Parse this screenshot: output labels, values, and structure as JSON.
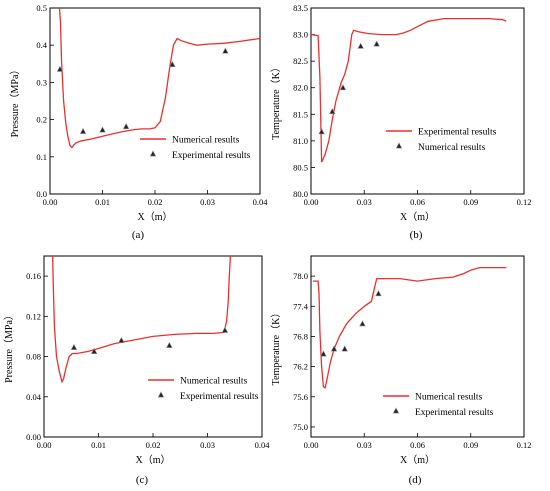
{
  "chart_data": [
    {
      "type": "line",
      "panel_label": "(a)",
      "xlabel": "X（m）",
      "ylabel": "Pressure（MPa）",
      "xlim": [
        0,
        0.04
      ],
      "ylim": [
        0,
        0.5
      ],
      "xticks": [
        "0.00",
        "0.01",
        "0.02",
        "0.03",
        "0.04"
      ],
      "yticks": [
        "0.0",
        "0.1",
        "0.2",
        "0.3",
        "0.4",
        "0.5"
      ],
      "legend_position": "center-right",
      "legend": {
        "line": "Numerical results",
        "marker": "Experimental results"
      },
      "series": [
        {
          "name": "Numerical results",
          "kind": "line",
          "x": [
            0.0018,
            0.002,
            0.0022,
            0.0026,
            0.003,
            0.0034,
            0.0038,
            0.0042,
            0.0046,
            0.005,
            0.006,
            0.008,
            0.01,
            0.012,
            0.014,
            0.016,
            0.0175,
            0.019,
            0.02,
            0.021,
            0.022,
            0.0228,
            0.0235,
            0.0242,
            0.025,
            0.0265,
            0.028,
            0.03,
            0.033,
            0.036,
            0.04
          ],
          "y": [
            0.5,
            0.46,
            0.36,
            0.25,
            0.19,
            0.155,
            0.13,
            0.125,
            0.133,
            0.138,
            0.143,
            0.148,
            0.155,
            0.162,
            0.168,
            0.173,
            0.175,
            0.175,
            0.178,
            0.195,
            0.26,
            0.34,
            0.4,
            0.418,
            0.412,
            0.405,
            0.4,
            0.403,
            0.405,
            0.41,
            0.418
          ]
        },
        {
          "name": "Experimental results",
          "kind": "scatter",
          "x": [
            0.0019,
            0.0063,
            0.01,
            0.0145,
            0.0233,
            0.0334
          ],
          "y": [
            0.335,
            0.168,
            0.172,
            0.181,
            0.348,
            0.384
          ]
        }
      ]
    },
    {
      "type": "line",
      "panel_label": "(b)",
      "xlabel": "X（m）",
      "ylabel": "Temperature（K）",
      "xlim": [
        0,
        0.12
      ],
      "ylim": [
        80.0,
        83.5
      ],
      "xticks": [
        "0.00",
        "0.03",
        "0.06",
        "0.09",
        "0.12"
      ],
      "yticks": [
        "80.0",
        "80.5",
        "81.0",
        "81.5",
        "82.0",
        "82.5",
        "83.0",
        "83.5"
      ],
      "legend_position": "center-right",
      "legend": {
        "line": "Experimental results",
        "marker": "Numerical results"
      },
      "series": [
        {
          "name": "Experimental results",
          "kind": "line",
          "x": [
            0.0,
            0.004,
            0.005,
            0.006,
            0.008,
            0.01,
            0.012,
            0.014,
            0.017,
            0.019,
            0.021,
            0.023,
            0.024,
            0.027,
            0.032,
            0.04,
            0.048,
            0.052,
            0.056,
            0.06,
            0.066,
            0.075,
            0.09,
            0.1,
            0.108,
            0.11
          ],
          "y": [
            83.0,
            82.98,
            82.2,
            80.6,
            80.75,
            81.0,
            81.4,
            81.75,
            82.1,
            82.25,
            82.5,
            83.0,
            83.08,
            83.05,
            83.02,
            83.0,
            83.0,
            83.03,
            83.08,
            83.15,
            83.25,
            83.3,
            83.3,
            83.3,
            83.28,
            83.25
          ]
        },
        {
          "name": "Numerical results",
          "kind": "scatter",
          "x": [
            0.006,
            0.012,
            0.018,
            0.028,
            0.037
          ],
          "y": [
            81.17,
            81.55,
            82.0,
            82.78,
            82.82
          ]
        }
      ]
    },
    {
      "type": "line",
      "panel_label": "(c)",
      "xlabel": "X（m）",
      "ylabel": "Pressure（MPa）",
      "xlim": [
        0,
        0.04
      ],
      "ylim": [
        0,
        0.18
      ],
      "xticks": [
        "0.00",
        "0.01",
        "0.02",
        "0.03",
        "0.04"
      ],
      "yticks": [
        "0.00",
        "0.04",
        "0.08",
        "0.12",
        "0.16"
      ],
      "legend_position": "bottom-center",
      "legend": {
        "line": "Numerical results",
        "marker": "Experimental results"
      },
      "series": [
        {
          "name": "Numerical results",
          "kind": "line",
          "x": [
            0.0016,
            0.0017,
            0.0019,
            0.0023,
            0.0028,
            0.0033,
            0.0036,
            0.004,
            0.0046,
            0.0052,
            0.006,
            0.008,
            0.01,
            0.013,
            0.016,
            0.02,
            0.024,
            0.028,
            0.031,
            0.033,
            0.0335,
            0.0338,
            0.034,
            0.0342
          ],
          "y": [
            0.18,
            0.15,
            0.11,
            0.08,
            0.065,
            0.055,
            0.058,
            0.068,
            0.08,
            0.083,
            0.083,
            0.085,
            0.088,
            0.093,
            0.096,
            0.1,
            0.102,
            0.103,
            0.103,
            0.104,
            0.115,
            0.135,
            0.16,
            0.18
          ]
        },
        {
          "name": "Experimental results",
          "kind": "scatter",
          "x": [
            0.0055,
            0.0092,
            0.0142,
            0.023,
            0.0332
          ],
          "y": [
            0.089,
            0.085,
            0.096,
            0.091,
            0.106
          ]
        }
      ]
    },
    {
      "type": "line",
      "panel_label": "(d)",
      "xlabel": "X（m）",
      "ylabel": "Temperature（K）",
      "xlim": [
        0,
        0.12
      ],
      "ylim": [
        74.8,
        78.4
      ],
      "xticks": [
        "0.00",
        "0.03",
        "0.06",
        "0.09",
        "0.12"
      ],
      "yticks": [
        "75.0",
        "75.6",
        "76.2",
        "76.8",
        "77.4",
        "78.0"
      ],
      "legend_position": "bottom-right",
      "legend": {
        "line": "Numerical results",
        "marker": "Experimental results"
      },
      "series": [
        {
          "name": "Numerical results",
          "kind": "line",
          "x": [
            0.001,
            0.004,
            0.0045,
            0.005,
            0.006,
            0.007,
            0.008,
            0.009,
            0.011,
            0.013,
            0.016,
            0.02,
            0.025,
            0.03,
            0.034,
            0.036,
            0.037,
            0.04,
            0.05,
            0.06,
            0.07,
            0.08,
            0.086,
            0.09,
            0.095,
            0.1,
            0.105,
            0.11
          ],
          "y": [
            77.9,
            77.9,
            77.65,
            76.9,
            76.2,
            75.8,
            75.78,
            75.95,
            76.3,
            76.55,
            76.8,
            77.05,
            77.25,
            77.4,
            77.5,
            77.8,
            77.95,
            77.95,
            77.95,
            77.9,
            77.95,
            77.98,
            78.05,
            78.12,
            78.17,
            78.17,
            78.17,
            78.17
          ]
        },
        {
          "name": "Experimental results",
          "kind": "scatter",
          "x": [
            0.007,
            0.013,
            0.019,
            0.029,
            0.038
          ],
          "y": [
            76.45,
            76.55,
            76.55,
            77.05,
            77.65
          ]
        }
      ]
    }
  ]
}
